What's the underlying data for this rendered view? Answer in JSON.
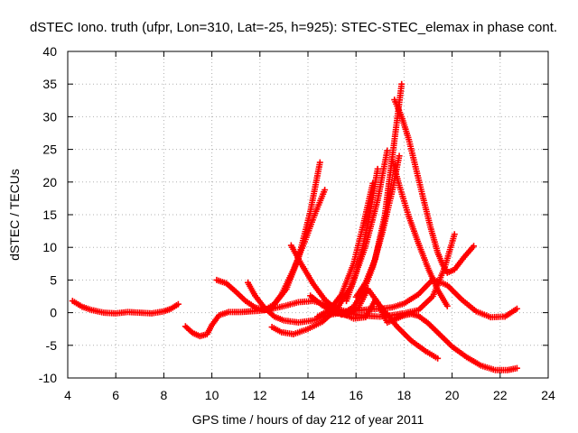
{
  "chart_data": {
    "type": "scatter",
    "title": "dSTEC Iono. truth (ufpr, Lon=310, Lat=-25, h=925): STEC-STEC_elemax in phase cont.",
    "xlabel": "GPS time / hours of day 212 of year 2011",
    "ylabel": "dSTEC  / TECUs",
    "xlim": [
      4,
      24
    ],
    "ylim": [
      -10,
      40
    ],
    "xticks": [
      4,
      6,
      8,
      10,
      12,
      14,
      16,
      18,
      20,
      22,
      24
    ],
    "yticks": [
      -10,
      -5,
      0,
      5,
      10,
      15,
      20,
      25,
      30,
      35,
      40
    ],
    "xtick_labels": [
      "4",
      "6",
      "8",
      "10",
      "12",
      "14",
      "16",
      "18",
      "20",
      "22",
      "24"
    ],
    "ytick_labels": [
      "-10",
      "-5",
      "0",
      "5",
      "10",
      "15",
      "20",
      "25",
      "30",
      "35",
      "40"
    ],
    "grid": true,
    "marker": "plus",
    "color": "#ff0000",
    "series": [
      {
        "x": [
          4.2,
          4.6,
          5.0,
          5.5,
          6.0,
          6.5,
          7.0,
          7.5,
          8.0,
          8.3,
          8.6
        ],
        "y": [
          1.8,
          0.9,
          0.4,
          0.0,
          -0.1,
          0.1,
          0.0,
          -0.1,
          0.2,
          0.6,
          1.3
        ]
      },
      {
        "x": [
          8.9,
          9.2,
          9.5,
          9.8,
          10.0,
          10.3,
          10.7,
          11.2,
          11.6,
          12.0,
          12.4,
          13.0,
          13.6,
          14.2,
          14.8,
          15.4,
          16.0,
          16.5,
          17.0,
          17.5,
          18.0,
          18.6,
          19.2,
          19.7,
          20.1
        ],
        "y": [
          -2.1,
          -3.1,
          -3.6,
          -3.3,
          -1.9,
          -0.4,
          0.1,
          0.1,
          0.2,
          0.3,
          0.5,
          1.0,
          1.6,
          1.8,
          1.2,
          0.4,
          -0.3,
          -0.5,
          -0.6,
          -0.4,
          -0.1,
          0.4,
          2.5,
          7.0,
          12.0
        ]
      },
      {
        "x": [
          10.2,
          10.6,
          11.0,
          11.4,
          11.8,
          12.2,
          12.6,
          13.1,
          13.6,
          14.1,
          14.5
        ],
        "y": [
          5.0,
          4.5,
          3.2,
          1.8,
          0.8,
          0.4,
          1.3,
          3.6,
          8.3,
          15.5,
          23.0
        ]
      },
      {
        "x": [
          11.5,
          11.8,
          12.2,
          12.6,
          13.0,
          13.6,
          14.2,
          14.8,
          15.4,
          16.0,
          16.5,
          17.0,
          17.5,
          18.0,
          18.6,
          19.2,
          19.8,
          20.4,
          21.0,
          21.6,
          22.2,
          22.7
        ],
        "y": [
          4.6,
          2.6,
          0.7,
          -0.6,
          -1.2,
          -1.5,
          -1.2,
          -0.4,
          0.0,
          0.3,
          0.5,
          0.6,
          0.8,
          1.4,
          2.8,
          5.1,
          4.2,
          2.0,
          0.2,
          -0.7,
          -0.6,
          0.6
        ]
      },
      {
        "x": [
          12.4,
          12.9,
          13.4,
          13.9,
          14.3,
          14.7
        ],
        "y": [
          0.3,
          2.8,
          6.6,
          11.2,
          15.2,
          18.8
        ]
      },
      {
        "x": [
          12.5,
          12.9,
          13.4,
          14.0,
          14.6,
          15.2,
          15.8,
          16.4,
          16.9,
          17.3
        ],
        "y": [
          -2.2,
          -3.0,
          -3.3,
          -2.5,
          -1.4,
          0.6,
          4.0,
          10.2,
          17.2,
          24.8
        ]
      },
      {
        "x": [
          13.3,
          13.7,
          14.2,
          14.7,
          15.3,
          15.9,
          16.4,
          16.8,
          17.2,
          17.7,
          18.3,
          18.9,
          19.4
        ],
        "y": [
          10.3,
          7.6,
          4.5,
          2.0,
          0.1,
          -0.9,
          -0.7,
          1.9,
          0.2,
          -2.1,
          -4.3,
          -5.9,
          -7.0
        ]
      },
      {
        "x": [
          14.1,
          14.6,
          15.1,
          15.6,
          16.1,
          16.5,
          16.9,
          17.3,
          17.7,
          18.0,
          18.3,
          18.6,
          19.0,
          19.5,
          20.0,
          20.6,
          21.2,
          21.8,
          22.3,
          22.7
        ],
        "y": [
          2.6,
          1.1,
          0.0,
          -0.4,
          0.8,
          3.6,
          1.6,
          -1.5,
          -0.9,
          -0.4,
          -0.2,
          -0.5,
          -1.6,
          -3.4,
          -5.2,
          -6.8,
          -8.1,
          -8.8,
          -8.8,
          -8.5
        ]
      },
      {
        "x": [
          14.4,
          14.9,
          15.4,
          15.9,
          16.3,
          16.7
        ],
        "y": [
          -0.6,
          0.4,
          2.8,
          7.5,
          13.4,
          19.8
        ]
      },
      {
        "x": [
          15.4,
          15.9,
          16.3,
          16.7,
          17.1,
          17.5,
          17.8
        ],
        "y": [
          -0.3,
          0.9,
          3.2,
          7.0,
          12.3,
          18.5,
          24.0
        ]
      },
      {
        "x": [
          15.6,
          16.0,
          16.3,
          16.6,
          16.9
        ],
        "y": [
          1.8,
          6.0,
          10.3,
          15.6,
          22.0
        ]
      },
      {
        "x": [
          16.0,
          16.4,
          16.8,
          17.2,
          17.5,
          17.9
        ],
        "y": [
          2.4,
          4.6,
          8.2,
          14.9,
          23.5,
          35.0
        ]
      },
      {
        "x": [
          17.6,
          17.9,
          18.2,
          18.5,
          18.8,
          19.1,
          19.4,
          19.6,
          19.8,
          20.1,
          20.5,
          20.9
        ],
        "y": [
          32.6,
          30.0,
          26.5,
          22.0,
          17.5,
          13.1,
          9.2,
          7.4,
          6.1,
          6.6,
          8.5,
          10.2
        ]
      },
      {
        "x": [
          17.5,
          17.8,
          18.2,
          18.6,
          19.0,
          19.4,
          19.8
        ],
        "y": [
          23.5,
          19.5,
          14.7,
          10.6,
          6.8,
          3.5,
          1.0
        ]
      }
    ]
  }
}
